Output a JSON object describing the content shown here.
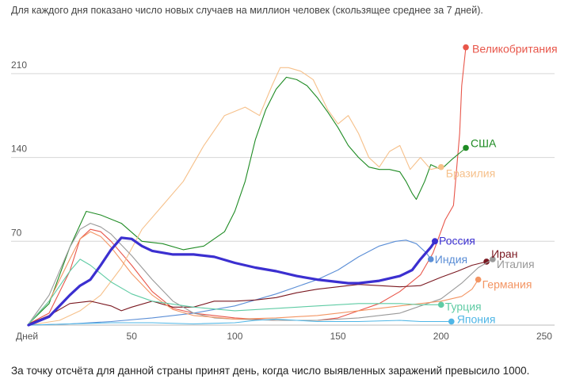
{
  "subtitle": "Для каждого дня показано число новых случаев на миллион человек (скользящее среднее за 7 дней).",
  "footnote": "За точку отсчёта для данной страны принят день, когда число выявленных заражений превысило 1000.",
  "chart_data": {
    "type": "line",
    "xlabel": "Дней",
    "ylabel": "",
    "xlim": [
      0,
      255
    ],
    "ylim": [
      0,
      245
    ],
    "xticks": [
      50,
      100,
      150,
      200,
      250
    ],
    "yticks": [
      70,
      140,
      210
    ],
    "grid": "horizontal",
    "legend": "end-of-line labels",
    "series": [
      {
        "name": "Великобритания",
        "color": "#e8564a",
        "highlight": false,
        "end_marker": true,
        "points": [
          [
            0,
            1
          ],
          [
            10,
            10
          ],
          [
            20,
            45
          ],
          [
            25,
            72
          ],
          [
            30,
            80
          ],
          [
            35,
            78
          ],
          [
            40,
            70
          ],
          [
            50,
            50
          ],
          [
            60,
            28
          ],
          [
            70,
            14
          ],
          [
            80,
            10
          ],
          [
            100,
            6
          ],
          [
            120,
            4
          ],
          [
            140,
            4
          ],
          [
            150,
            6
          ],
          [
            160,
            12
          ],
          [
            170,
            18
          ],
          [
            180,
            28
          ],
          [
            190,
            42
          ],
          [
            196,
            60
          ],
          [
            202,
            88
          ],
          [
            206,
            100
          ],
          [
            209,
            160
          ],
          [
            210,
            200
          ],
          [
            212,
            232
          ]
        ]
      },
      {
        "name": "США",
        "color": "#1e8b23",
        "highlight": false,
        "end_marker": true,
        "points": [
          [
            0,
            1
          ],
          [
            10,
            18
          ],
          [
            20,
            65
          ],
          [
            28,
            95
          ],
          [
            35,
            92
          ],
          [
            45,
            85
          ],
          [
            55,
            70
          ],
          [
            65,
            68
          ],
          [
            75,
            63
          ],
          [
            85,
            66
          ],
          [
            95,
            78
          ],
          [
            100,
            95
          ],
          [
            105,
            120
          ],
          [
            110,
            155
          ],
          [
            115,
            180
          ],
          [
            120,
            197
          ],
          [
            125,
            207
          ],
          [
            130,
            205
          ],
          [
            135,
            200
          ],
          [
            140,
            190
          ],
          [
            145,
            178
          ],
          [
            150,
            165
          ],
          [
            155,
            150
          ],
          [
            160,
            140
          ],
          [
            165,
            132
          ],
          [
            170,
            130
          ],
          [
            175,
            130
          ],
          [
            180,
            128
          ],
          [
            183,
            120
          ],
          [
            186,
            110
          ],
          [
            188,
            105
          ],
          [
            192,
            120
          ],
          [
            195,
            134
          ],
          [
            200,
            130
          ],
          [
            205,
            138
          ],
          [
            212,
            148
          ]
        ]
      },
      {
        "name": "Бразилия",
        "color": "#f6c08a",
        "highlight": false,
        "end_marker": true,
        "points": [
          [
            0,
            0
          ],
          [
            15,
            4
          ],
          [
            25,
            12
          ],
          [
            35,
            25
          ],
          [
            45,
            48
          ],
          [
            55,
            80
          ],
          [
            65,
            100
          ],
          [
            75,
            120
          ],
          [
            85,
            150
          ],
          [
            95,
            175
          ],
          [
            105,
            182
          ],
          [
            112,
            175
          ],
          [
            118,
            200
          ],
          [
            122,
            215
          ],
          [
            126,
            215
          ],
          [
            132,
            212
          ],
          [
            138,
            205
          ],
          [
            145,
            180
          ],
          [
            150,
            168
          ],
          [
            155,
            175
          ],
          [
            160,
            160
          ],
          [
            165,
            140
          ],
          [
            170,
            132
          ],
          [
            175,
            145
          ],
          [
            180,
            150
          ],
          [
            185,
            130
          ],
          [
            190,
            140
          ],
          [
            195,
            130
          ],
          [
            200,
            132
          ]
        ]
      },
      {
        "name": "Россия",
        "color": "#3b2fd0",
        "highlight": true,
        "end_marker": true,
        "points": [
          [
            0,
            0
          ],
          [
            10,
            7
          ],
          [
            20,
            25
          ],
          [
            25,
            33
          ],
          [
            30,
            38
          ],
          [
            35,
            50
          ],
          [
            40,
            63
          ],
          [
            45,
            73
          ],
          [
            50,
            72
          ],
          [
            55,
            66
          ],
          [
            60,
            62
          ],
          [
            70,
            59
          ],
          [
            80,
            59
          ],
          [
            90,
            57
          ],
          [
            100,
            52
          ],
          [
            110,
            48
          ],
          [
            120,
            45
          ],
          [
            130,
            41
          ],
          [
            140,
            38
          ],
          [
            150,
            36
          ],
          [
            155,
            35
          ],
          [
            160,
            35
          ],
          [
            170,
            37
          ],
          [
            180,
            41
          ],
          [
            186,
            46
          ],
          [
            190,
            55
          ],
          [
            195,
            65
          ],
          [
            197,
            70
          ]
        ]
      },
      {
        "name": "Индия",
        "color": "#5b8ed6",
        "highlight": false,
        "end_marker": true,
        "points": [
          [
            0,
            0
          ],
          [
            20,
            1
          ],
          [
            40,
            3
          ],
          [
            60,
            6
          ],
          [
            80,
            10
          ],
          [
            100,
            16
          ],
          [
            120,
            26
          ],
          [
            140,
            38
          ],
          [
            150,
            46
          ],
          [
            160,
            57
          ],
          [
            170,
            66
          ],
          [
            178,
            70
          ],
          [
            183,
            71
          ],
          [
            188,
            68
          ],
          [
            193,
            60
          ],
          [
            195,
            55
          ]
        ]
      },
      {
        "name": "Иран",
        "color": "#7a1820",
        "highlight": false,
        "end_marker": true,
        "points": [
          [
            0,
            1
          ],
          [
            10,
            8
          ],
          [
            20,
            18
          ],
          [
            30,
            20
          ],
          [
            40,
            16
          ],
          [
            45,
            12
          ],
          [
            50,
            15
          ],
          [
            60,
            20
          ],
          [
            70,
            15
          ],
          [
            80,
            15
          ],
          [
            90,
            20
          ],
          [
            100,
            20
          ],
          [
            110,
            21
          ],
          [
            120,
            23
          ],
          [
            130,
            27
          ],
          [
            140,
            30
          ],
          [
            150,
            32
          ],
          [
            160,
            34
          ],
          [
            170,
            33
          ],
          [
            180,
            32
          ],
          [
            190,
            33
          ],
          [
            200,
            40
          ],
          [
            208,
            45
          ],
          [
            215,
            50
          ],
          [
            222,
            53
          ]
        ]
      },
      {
        "name": "Италия",
        "color": "#999999",
        "highlight": false,
        "end_marker": true,
        "points": [
          [
            0,
            1
          ],
          [
            10,
            25
          ],
          [
            20,
            65
          ],
          [
            25,
            80
          ],
          [
            30,
            85
          ],
          [
            35,
            82
          ],
          [
            40,
            76
          ],
          [
            50,
            58
          ],
          [
            60,
            38
          ],
          [
            70,
            20
          ],
          [
            80,
            10
          ],
          [
            90,
            6
          ],
          [
            100,
            5
          ],
          [
            120,
            4
          ],
          [
            140,
            4
          ],
          [
            160,
            6
          ],
          [
            180,
            10
          ],
          [
            200,
            22
          ],
          [
            210,
            35
          ],
          [
            218,
            48
          ],
          [
            225,
            55
          ]
        ]
      },
      {
        "name": "Германия",
        "color": "#f39563",
        "highlight": false,
        "end_marker": true,
        "points": [
          [
            0,
            1
          ],
          [
            10,
            20
          ],
          [
            20,
            55
          ],
          [
            25,
            72
          ],
          [
            30,
            78
          ],
          [
            35,
            74
          ],
          [
            40,
            65
          ],
          [
            50,
            43
          ],
          [
            60,
            25
          ],
          [
            70,
            13
          ],
          [
            80,
            8
          ],
          [
            100,
            5
          ],
          [
            120,
            6
          ],
          [
            140,
            8
          ],
          [
            160,
            12
          ],
          [
            180,
            16
          ],
          [
            200,
            20
          ],
          [
            210,
            24
          ],
          [
            215,
            30
          ],
          [
            218,
            38
          ]
        ]
      },
      {
        "name": "Турция",
        "color": "#5fcba4",
        "highlight": false,
        "end_marker": true,
        "points": [
          [
            0,
            1
          ],
          [
            10,
            20
          ],
          [
            20,
            45
          ],
          [
            25,
            55
          ],
          [
            30,
            50
          ],
          [
            40,
            36
          ],
          [
            50,
            26
          ],
          [
            60,
            20
          ],
          [
            80,
            15
          ],
          [
            100,
            12
          ],
          [
            120,
            14
          ],
          [
            140,
            16
          ],
          [
            160,
            18
          ],
          [
            180,
            18
          ],
          [
            190,
            17
          ],
          [
            200,
            17
          ]
        ]
      },
      {
        "name": "Япония",
        "color": "#4fb6e6",
        "highlight": false,
        "end_marker": true,
        "points": [
          [
            0,
            0
          ],
          [
            20,
            1
          ],
          [
            40,
            2
          ],
          [
            60,
            2
          ],
          [
            80,
            1
          ],
          [
            100,
            2
          ],
          [
            110,
            4
          ],
          [
            120,
            5
          ],
          [
            130,
            4
          ],
          [
            140,
            3
          ],
          [
            160,
            3
          ],
          [
            180,
            4
          ],
          [
            190,
            3
          ],
          [
            200,
            3
          ],
          [
            205,
            3
          ]
        ]
      }
    ]
  }
}
